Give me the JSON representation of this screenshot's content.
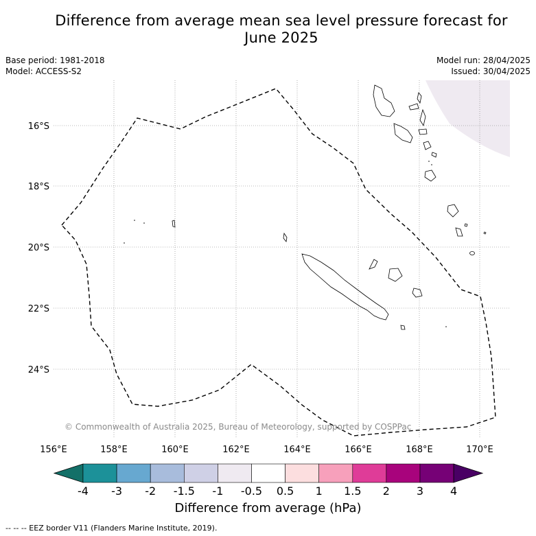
{
  "title_line1": "Difference from average mean sea level pressure forecast for",
  "title_line2": "June 2025",
  "base_period": "Base period: 1981-2018",
  "model": "Model: ACCESS-S2",
  "model_run": "Model run: 28/04/2025",
  "issued": "Issued: 30/04/2025",
  "copyright": "© Commonwealth of Australia 2025, Bureau of Meteorology, supported by COSPPac",
  "lat_labels": [
    "16°S",
    "18°S",
    "20°S",
    "22°S",
    "24°S"
  ],
  "lon_labels": [
    "156°E",
    "158°E",
    "160°E",
    "162°E",
    "164°E",
    "166°E",
    "168°E",
    "170°E"
  ],
  "colorbar": {
    "label": "Difference from average (hPa)",
    "ticks": [
      "-4",
      "-3",
      "-2",
      "-1.5",
      "-1",
      "-0.5",
      "0.5",
      "1",
      "1.5",
      "2",
      "3",
      "4"
    ],
    "colors": [
      "#137068",
      "#1c9199",
      "#67a8d0",
      "#a8bcdc",
      "#cfd0e6",
      "#efeaf1",
      "#ffffff",
      "#fcdedf",
      "#f7a0bb",
      "#df3c98",
      "#a8037c",
      "#760176",
      "#490064"
    ]
  },
  "footer": "--  --  -- EEZ border V11 (Flanders Marine Institute, 2019)."
}
